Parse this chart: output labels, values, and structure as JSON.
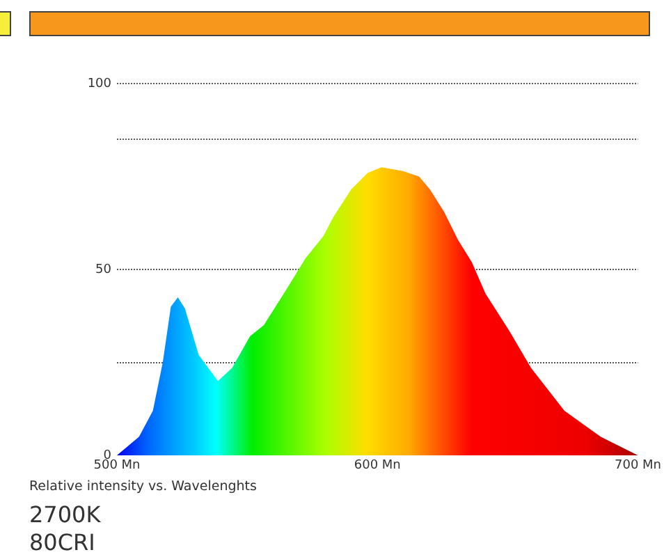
{
  "chart_data": {
    "type": "area",
    "xlabel": "Relative intensity vs. Wavelenghts",
    "annotations": [
      "2700K",
      "80CRI"
    ],
    "xlim": [
      500,
      700
    ],
    "xticks": [
      {
        "value": 500,
        "label": "500 Mn"
      },
      {
        "value": 600,
        "label": "600 Mn"
      },
      {
        "value": 700,
        "label": "700 Mn"
      }
    ],
    "ylim": [
      0,
      100
    ],
    "yticks": [
      0,
      {
        "value": 25,
        "label": null
      },
      50,
      {
        "value": 85,
        "label": null
      },
      100
    ],
    "grid": "y",
    "legend": false,
    "series": [
      {
        "color": "#ffdd00",
        "x": [
          500,
          508.5,
          513.8,
          517.6,
          520.7,
          523.4,
          526.1,
          531.4,
          538.8,
          544.2,
          551.1,
          556.4,
          565.4,
          572.4,
          579.3,
          583,
          589.9,
          596.3,
          601.6,
          609.6,
          616,
          620.2,
          625.6,
          630.9,
          636.2,
          641.5,
          650.6,
          659,
          671.8,
          685.7,
          700
        ],
        "values": [
          0,
          5,
          12,
          25,
          40,
          42.5,
          39.5,
          27,
          20,
          23.5,
          32,
          35,
          45,
          53,
          59,
          64,
          71.5,
          76,
          77.5,
          76.5,
          75,
          71.5,
          65.5,
          58,
          52,
          43.5,
          33.5,
          23.5,
          12,
          5,
          0
        ]
      }
    ]
  }
}
